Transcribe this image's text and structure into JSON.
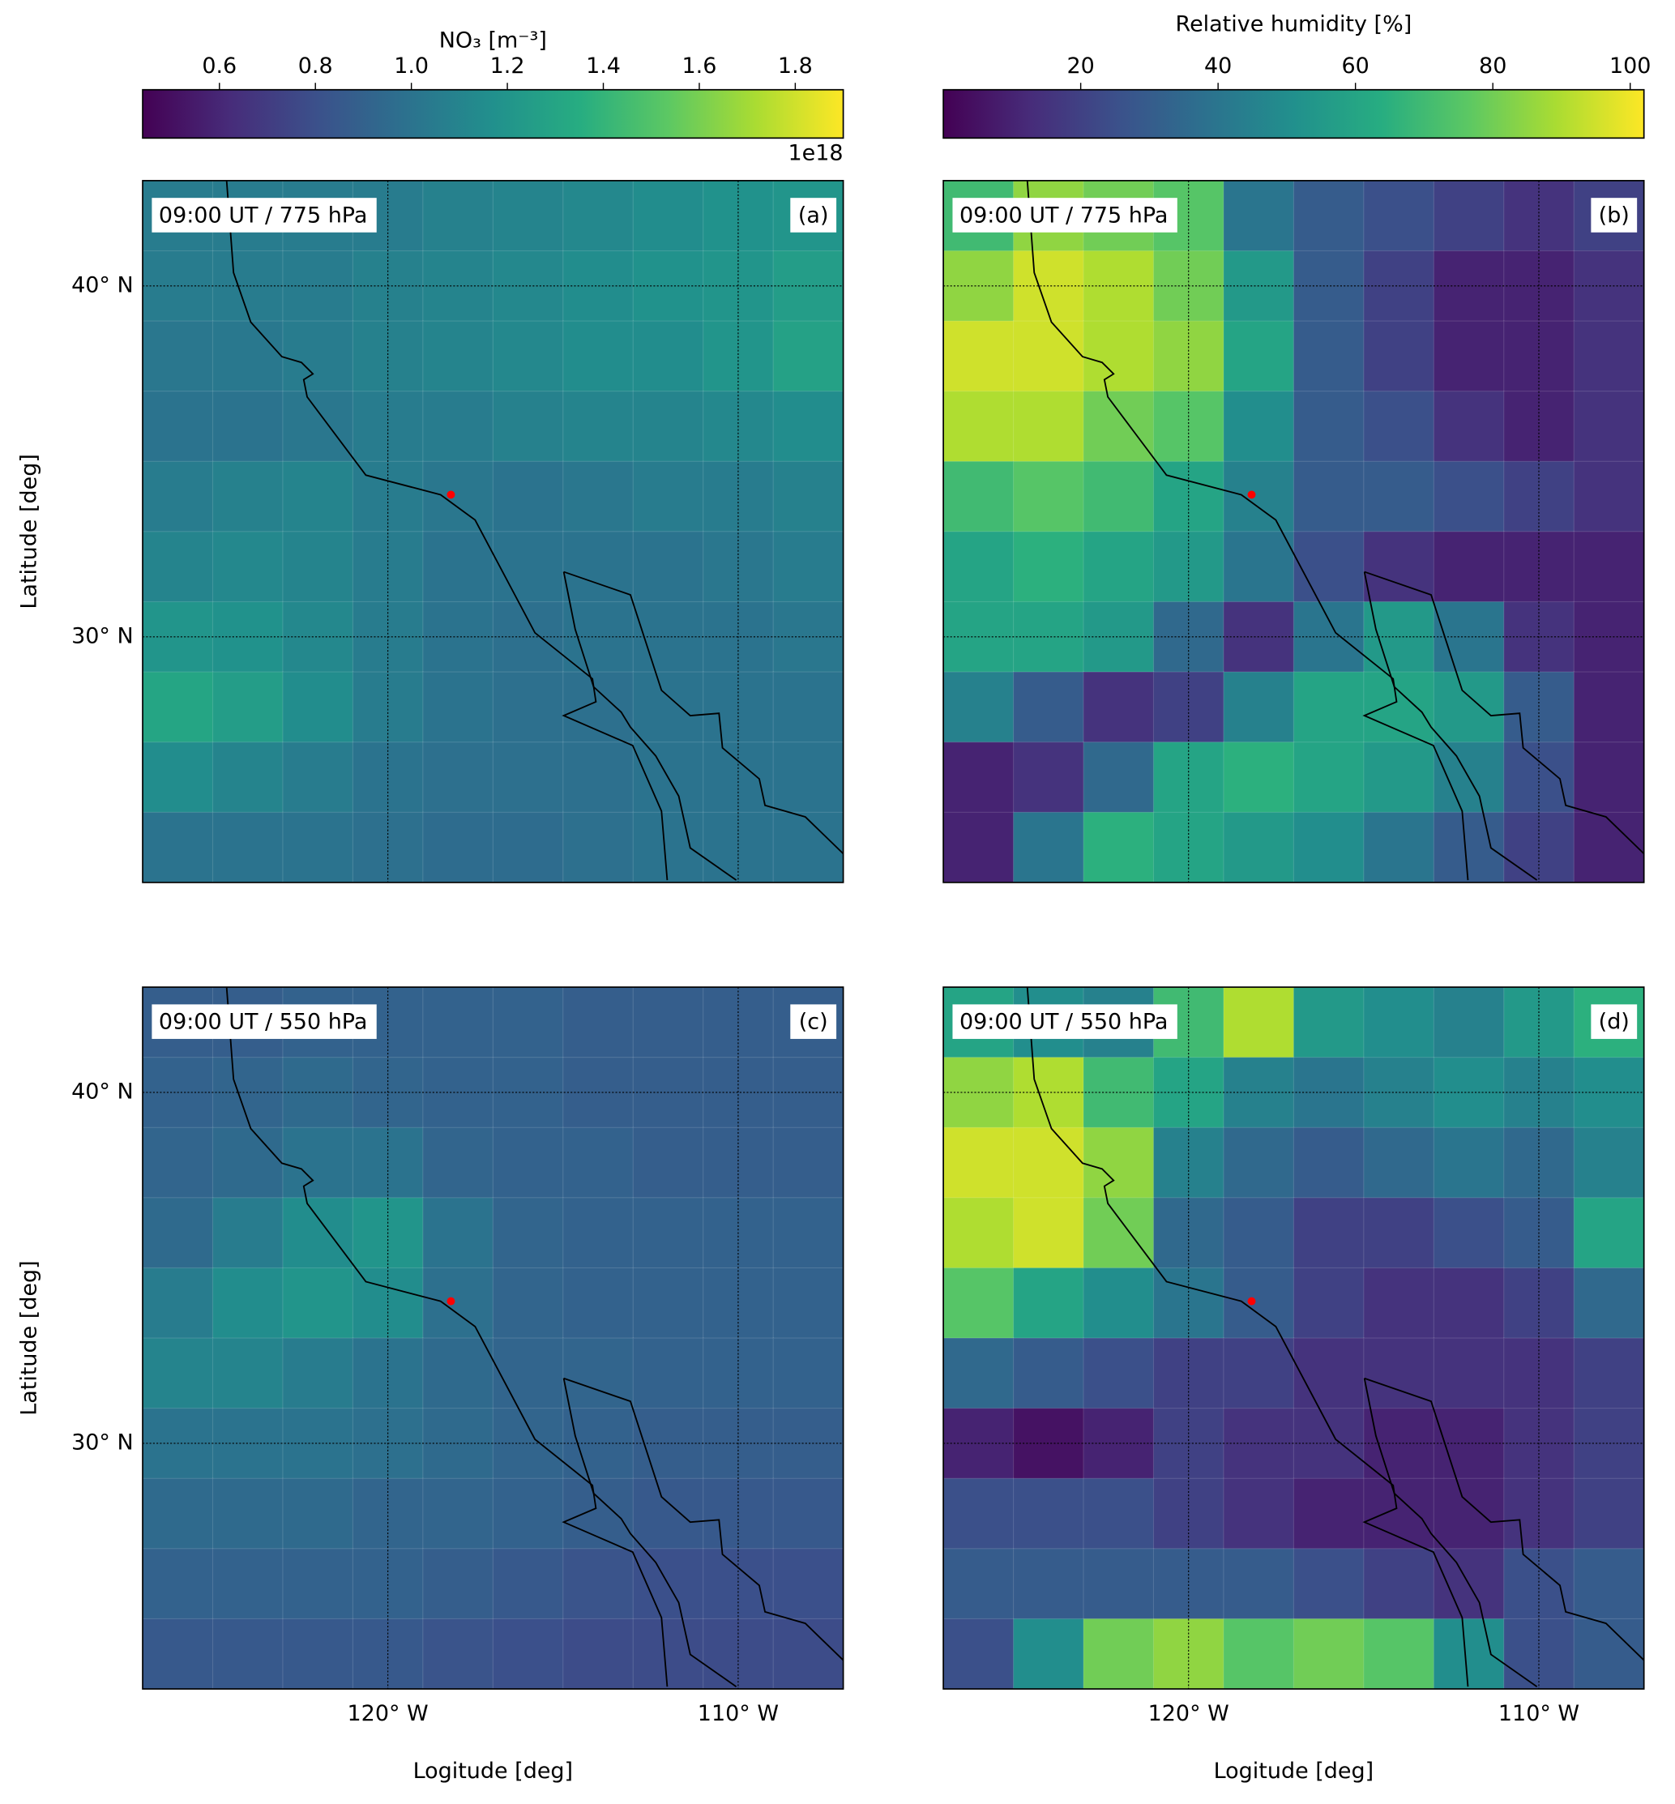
{
  "colormap": "viridis",
  "chart_data": [
    {
      "type": "heatmap",
      "title": "09:00 UT / 775 hPa",
      "panel_label": "(a)",
      "xlim": [
        -127,
        -107
      ],
      "ylim": [
        23,
        43
      ],
      "xticks": [
        -120,
        -110
      ],
      "yticks": [
        {
          "value": 30,
          "label": "30° N"
        },
        {
          "value": 40,
          "label": "40° N"
        }
      ],
      "ylabel": "Latitude [deg]",
      "clim": [
        0.44,
        1.9
      ],
      "colorbar": {
        "label": "NO₃ [m⁻³]",
        "offset_text": "1e18",
        "ticks": [
          0.6,
          0.8,
          {
            "value": 1,
            "label": "1.0"
          },
          1.2,
          1.4,
          1.6,
          1.8
        ]
      },
      "marker": {
        "x": -118.2,
        "y": 34.05,
        "color": "#ff0000"
      },
      "z": [
        [
          1.05,
          1.05,
          1.05,
          1.05,
          1.08,
          1.1,
          1.12,
          1.15,
          1.18,
          1.2
        ],
        [
          1.05,
          1.05,
          1.05,
          1.08,
          1.1,
          1.12,
          1.15,
          1.18,
          1.2,
          1.25
        ],
        [
          1.02,
          1.03,
          1.05,
          1.08,
          1.1,
          1.12,
          1.15,
          1.15,
          1.2,
          1.28
        ],
        [
          1.0,
          1.0,
          1.02,
          1.05,
          1.05,
          1.08,
          1.1,
          1.1,
          1.12,
          1.15
        ],
        [
          1.05,
          1.08,
          1.1,
          1.05,
          1.02,
          1.0,
          1.02,
          1.05,
          1.05,
          1.08
        ],
        [
          1.1,
          1.12,
          1.1,
          1.05,
          1.0,
          1.0,
          1.0,
          1.0,
          1.02,
          1.05
        ],
        [
          1.2,
          1.18,
          1.12,
          1.05,
          1.0,
          0.98,
          1.0,
          1.0,
          1.0,
          1.02
        ],
        [
          1.3,
          1.25,
          1.15,
          1.05,
          1.0,
          0.98,
          0.98,
          1.0,
          1.0,
          1.0
        ],
        [
          1.15,
          1.1,
          1.05,
          1.0,
          0.98,
          0.98,
          0.98,
          1.0,
          1.0,
          1.0
        ],
        [
          1.0,
          1.0,
          1.0,
          0.98,
          0.96,
          0.96,
          0.98,
          1.0,
          1.0,
          1.0
        ]
      ]
    },
    {
      "type": "heatmap",
      "title": "09:00 UT / 775 hPa",
      "panel_label": "(b)",
      "xlim": [
        -127,
        -107
      ],
      "ylim": [
        23,
        43
      ],
      "xticks": [
        -120,
        -110
      ],
      "yticks": [
        30,
        40
      ],
      "clim": [
        0,
        102
      ],
      "colorbar": {
        "label": "Relative humidity [%]",
        "ticks": [
          20,
          40,
          60,
          80,
          100
        ]
      },
      "marker": {
        "x": -118.2,
        "y": 34.05,
        "color": "#ff0000"
      },
      "z": [
        [
          70,
          85,
          80,
          75,
          40,
          30,
          25,
          20,
          15,
          20
        ],
        [
          85,
          95,
          90,
          80,
          55,
          30,
          20,
          10,
          10,
          15
        ],
        [
          95,
          95,
          90,
          85,
          60,
          30,
          20,
          10,
          10,
          15
        ],
        [
          90,
          90,
          80,
          75,
          50,
          30,
          25,
          15,
          10,
          15
        ],
        [
          70,
          75,
          70,
          60,
          45,
          30,
          30,
          25,
          20,
          15
        ],
        [
          60,
          65,
          60,
          55,
          40,
          25,
          15,
          10,
          10,
          10
        ],
        [
          60,
          60,
          55,
          35,
          15,
          40,
          55,
          40,
          15,
          10
        ],
        [
          45,
          30,
          15,
          20,
          45,
          60,
          60,
          55,
          30,
          10
        ],
        [
          10,
          15,
          35,
          60,
          65,
          60,
          55,
          45,
          25,
          10
        ],
        [
          10,
          40,
          65,
          60,
          55,
          50,
          40,
          30,
          20,
          10
        ]
      ]
    },
    {
      "type": "heatmap",
      "title": "09:00 UT / 550 hPa",
      "panel_label": "(c)",
      "xlim": [
        -127,
        -107
      ],
      "ylim": [
        23,
        43
      ],
      "xticks": [
        {
          "value": -120,
          "label": "120° W"
        },
        {
          "value": -110,
          "label": "110° W"
        }
      ],
      "yticks": [
        {
          "value": 30,
          "label": "30° N"
        },
        {
          "value": 40,
          "label": "40° N"
        }
      ],
      "xlabel": "Logitude [deg]",
      "ylabel": "Latitude [deg]",
      "clim": [
        0.44,
        1.9
      ],
      "marker": {
        "x": -118.2,
        "y": 34.05,
        "color": "#ff0000"
      },
      "z": [
        [
          0.88,
          0.88,
          0.9,
          0.9,
          0.9,
          0.9,
          0.88,
          0.88,
          0.88,
          0.88
        ],
        [
          0.9,
          0.92,
          0.95,
          0.92,
          0.9,
          0.9,
          0.88,
          0.88,
          0.88,
          0.88
        ],
        [
          0.92,
          0.95,
          1.0,
          1.0,
          0.92,
          0.9,
          0.9,
          0.88,
          0.88,
          0.88
        ],
        [
          0.95,
          1.05,
          1.15,
          1.2,
          1.0,
          0.92,
          0.9,
          0.9,
          0.9,
          0.9
        ],
        [
          1.05,
          1.15,
          1.2,
          1.15,
          0.98,
          0.92,
          0.9,
          0.9,
          0.9,
          0.9
        ],
        [
          1.1,
          1.1,
          1.05,
          1.0,
          0.95,
          0.92,
          0.92,
          0.9,
          0.9,
          0.9
        ],
        [
          1.0,
          1.0,
          1.0,
          0.98,
          0.95,
          0.92,
          0.9,
          0.88,
          0.88,
          0.88
        ],
        [
          0.95,
          0.95,
          0.95,
          0.92,
          0.92,
          0.9,
          0.88,
          0.85,
          0.85,
          0.85
        ],
        [
          0.9,
          0.9,
          0.9,
          0.9,
          0.88,
          0.85,
          0.82,
          0.8,
          0.8,
          0.8
        ],
        [
          0.85,
          0.85,
          0.85,
          0.85,
          0.82,
          0.8,
          0.78,
          0.78,
          0.78,
          0.78
        ]
      ]
    },
    {
      "type": "heatmap",
      "title": "09:00 UT / 550 hPa",
      "panel_label": "(d)",
      "xlim": [
        -127,
        -107
      ],
      "ylim": [
        23,
        43
      ],
      "xticks": [
        {
          "value": -120,
          "label": "120° W"
        },
        {
          "value": -110,
          "label": "110° W"
        }
      ],
      "yticks": [
        30,
        40
      ],
      "xlabel": "Logitude [deg]",
      "clim": [
        0,
        102
      ],
      "marker": {
        "x": -118.2,
        "y": 34.05,
        "color": "#ff0000"
      },
      "z": [
        [
          60,
          50,
          45,
          70,
          90,
          55,
          50,
          45,
          55,
          65
        ],
        [
          85,
          90,
          70,
          60,
          45,
          40,
          45,
          50,
          45,
          50
        ],
        [
          95,
          95,
          85,
          45,
          35,
          30,
          35,
          40,
          35,
          45
        ],
        [
          90,
          95,
          80,
          35,
          30,
          20,
          20,
          25,
          30,
          60
        ],
        [
          75,
          60,
          50,
          40,
          30,
          20,
          15,
          15,
          20,
          35
        ],
        [
          35,
          30,
          25,
          20,
          20,
          15,
          15,
          15,
          15,
          20
        ],
        [
          10,
          5,
          10,
          20,
          15,
          15,
          10,
          10,
          15,
          20
        ],
        [
          25,
          25,
          25,
          20,
          15,
          10,
          10,
          10,
          15,
          20
        ],
        [
          30,
          30,
          30,
          30,
          30,
          25,
          20,
          15,
          25,
          30
        ],
        [
          25,
          50,
          80,
          85,
          75,
          80,
          75,
          50,
          25,
          30
        ]
      ]
    }
  ]
}
